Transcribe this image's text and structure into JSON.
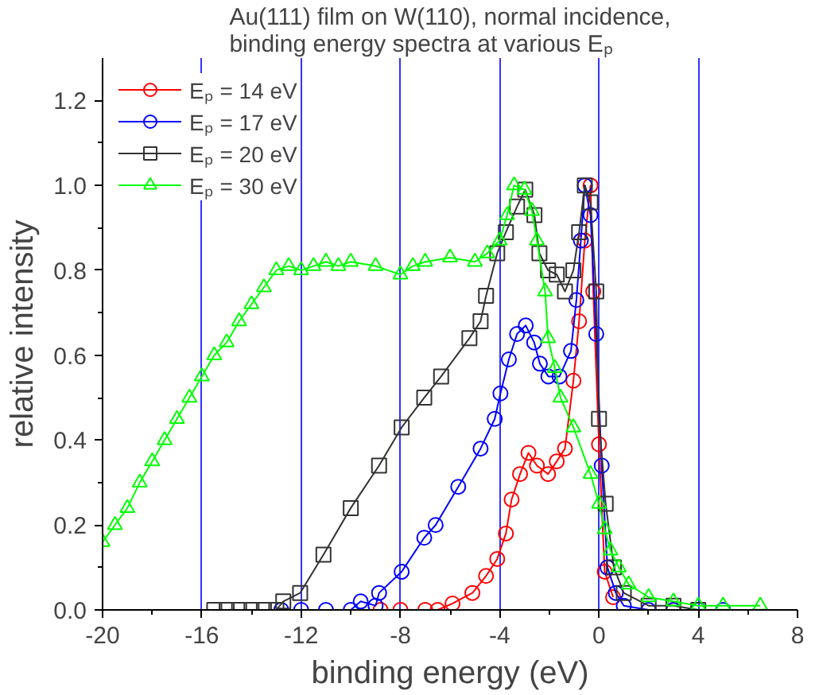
{
  "chart_data": {
    "type": "line",
    "title": "Au(111) film on W(110), normal incidence,\nbinding energy spectra at various Eₚ",
    "xlabel": "binding energy (eV)",
    "ylabel": "relative intensity",
    "xlim": [
      -20,
      8
    ],
    "ylim": [
      0,
      1.3
    ],
    "xticks": [
      -20,
      -16,
      -12,
      -8,
      -4,
      0,
      4,
      8
    ],
    "yticks": [
      {
        "value": 0,
        "label": "0.0"
      },
      0.2,
      0.4,
      0.6,
      0.8,
      {
        "value": 1,
        "label": "1.0"
      },
      1.2
    ],
    "grid": "x",
    "legend": "top left",
    "line_style": "solid",
    "series": [
      {
        "name": "Eₚ = 14 eV",
        "color": "#ff0000",
        "marker": "circle",
        "x": [
          -8.8,
          -8,
          -7,
          -6.5,
          -5.9,
          -5.1,
          -4.55,
          -4.1,
          -3.75,
          -3.52,
          -3.18,
          -2.84,
          -2.5,
          -2.05,
          -1.7,
          -1.37,
          -1.03,
          -0.8,
          -0.57,
          -0.34,
          -0.23,
          0,
          0.23,
          0.57,
          1.5,
          3
        ],
        "values": [
          0,
          0,
          0,
          0,
          0.015,
          0.04,
          0.08,
          0.12,
          0.18,
          0.26,
          0.32,
          0.37,
          0.34,
          0.32,
          0.35,
          0.38,
          0.54,
          0.68,
          0.87,
          1.0,
          0.75,
          0.39,
          0.09,
          0.03,
          null,
          0
        ]
      },
      {
        "name": "Eₚ = 17 eV",
        "color": "#0000ff",
        "marker": "circle",
        "x": [
          -12.8,
          -12,
          -11,
          -10,
          -9.6,
          -9,
          -8.86,
          -7.95,
          -7.04,
          -6.58,
          -5.67,
          -4.77,
          -4.2,
          -3.97,
          -3.63,
          -3.3,
          -2.95,
          -2.61,
          -2.38,
          -2.04,
          -1.59,
          -1.13,
          -0.91,
          -0.73,
          -0.57,
          -0.34,
          -0.11,
          0.11,
          0.34,
          0.68,
          1.0,
          2,
          3,
          4,
          5
        ],
        "values": [
          0,
          0,
          0,
          0,
          0.02,
          0.01,
          0.04,
          0.09,
          0.17,
          0.2,
          0.29,
          0.38,
          0.45,
          0.51,
          0.59,
          0.65,
          0.67,
          0.63,
          0.58,
          0.55,
          0.55,
          0.61,
          0.73,
          0.87,
          1.0,
          0.93,
          0.65,
          0.34,
          0.1,
          0.04,
          0.01,
          0,
          0,
          0,
          0
        ]
      },
      {
        "name": "Eₚ = 20 eV",
        "color": "#333333",
        "marker": "square",
        "x": [
          -15.5,
          -15,
          -14.5,
          -14,
          -13.5,
          -13,
          -12.72,
          -12.04,
          -11.1,
          -10.0,
          -8.86,
          -7.95,
          -7.04,
          -6.36,
          -5.22,
          -4.77,
          -4.55,
          -4.1,
          -3.75,
          -3.3,
          -2.97,
          -2.6,
          -2.4,
          -2.05,
          -1.7,
          -1.37,
          -1.03,
          -0.8,
          -0.57,
          -0.34,
          -0.11,
          0,
          0.27,
          0.6,
          1,
          2,
          3,
          4
        ],
        "values": [
          0,
          0,
          0,
          0,
          0,
          0,
          0.02,
          0.04,
          0.13,
          0.24,
          0.34,
          0.43,
          0.5,
          0.55,
          0.64,
          0.68,
          0.74,
          0.84,
          0.89,
          0.95,
          0.99,
          0.93,
          0.84,
          0.8,
          0.79,
          0.75,
          0.8,
          0.89,
          1.0,
          0.96,
          0.75,
          0.45,
          0.25,
          0.1,
          0.04,
          0.01,
          0.01,
          0
        ]
      },
      {
        "name": "Eₚ = 30 eV",
        "color": "#00ff00",
        "marker": "triangle",
        "x": [
          -20,
          -19.5,
          -19,
          -18.5,
          -18,
          -17.5,
          -17,
          -16.5,
          -16,
          -15.5,
          -15,
          -14.5,
          -14,
          -13.5,
          -13,
          -12.5,
          -12,
          -11.5,
          -11,
          -10.5,
          -10,
          -9,
          -8,
          -7.5,
          -7,
          -6,
          -5,
          -4.5,
          -4,
          -3.7,
          -3.42,
          -3.0,
          -2.7,
          -2.5,
          -2.17,
          -2.05,
          -1.78,
          -1.55,
          -1.03,
          -0.34,
          0,
          0.23,
          0.46,
          0.8,
          1.2,
          2,
          3,
          4,
          5,
          6.5
        ],
        "values": [
          0.16,
          0.2,
          0.24,
          0.3,
          0.35,
          0.4,
          0.45,
          0.5,
          0.55,
          0.6,
          0.63,
          0.68,
          0.72,
          0.76,
          0.8,
          0.81,
          0.8,
          0.81,
          0.82,
          0.81,
          0.82,
          0.81,
          0.79,
          0.81,
          0.82,
          0.83,
          0.82,
          0.84,
          0.87,
          0.93,
          1.0,
          0.99,
          0.94,
          0.87,
          0.75,
          0.64,
          0.57,
          0.5,
          0.43,
          0.32,
          0.25,
          0.19,
          0.14,
          0.1,
          0.06,
          0.03,
          0.02,
          0.01,
          0.01,
          0.01
        ]
      }
    ]
  }
}
